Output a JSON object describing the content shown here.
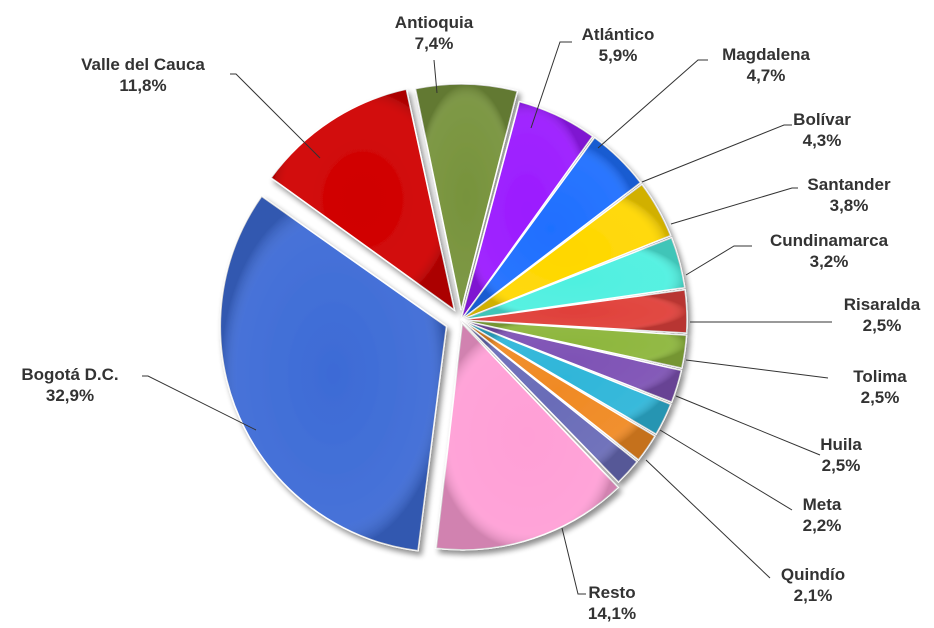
{
  "chart_data": {
    "type": "pie",
    "title": "",
    "slices": [
      {
        "label": "Antioquia",
        "value": 7.4,
        "display": "7,4%",
        "color": "#77933C"
      },
      {
        "label": "Atlántico",
        "value": 5.9,
        "display": "5,9%",
        "color": "#9B1BFF"
      },
      {
        "label": "Magdalena",
        "value": 4.7,
        "display": "4,7%",
        "color": "#1F6FFF"
      },
      {
        "label": "Bolívar",
        "value": 4.3,
        "display": "4,3%",
        "color": "#FFD700"
      },
      {
        "label": "Santander",
        "value": 3.8,
        "display": "3,8%",
        "color": "#4FF0E0"
      },
      {
        "label": "Cundinamarca",
        "value": 3.2,
        "display": "3,2%",
        "color": "#E0403A"
      },
      {
        "label": "Risaralda",
        "value": 2.5,
        "display": "2,5%",
        "color": "#8DB63C"
      },
      {
        "label": "Tolima",
        "value": 2.5,
        "display": "2,5%",
        "color": "#7E52B5"
      },
      {
        "label": "Huila",
        "value": 2.5,
        "display": "2,5%",
        "color": "#2FB6D9"
      },
      {
        "label": "Meta",
        "value": 2.2,
        "display": "2,2%",
        "color": "#F08A24"
      },
      {
        "label": "Quindío",
        "value": 2.1,
        "display": "2,1%",
        "color": "#6A6CB8"
      },
      {
        "label": "Resto",
        "value": 14.1,
        "display": "14,1%",
        "color": "#FF9FD6"
      },
      {
        "label": "Bogotá D.C.",
        "value": 32.9,
        "display": "32,9%",
        "color": "#3D6BD6"
      },
      {
        "label": "Valle  del Cauca",
        "value": 11.8,
        "display": "11,8%",
        "color": "#D00000"
      }
    ]
  }
}
